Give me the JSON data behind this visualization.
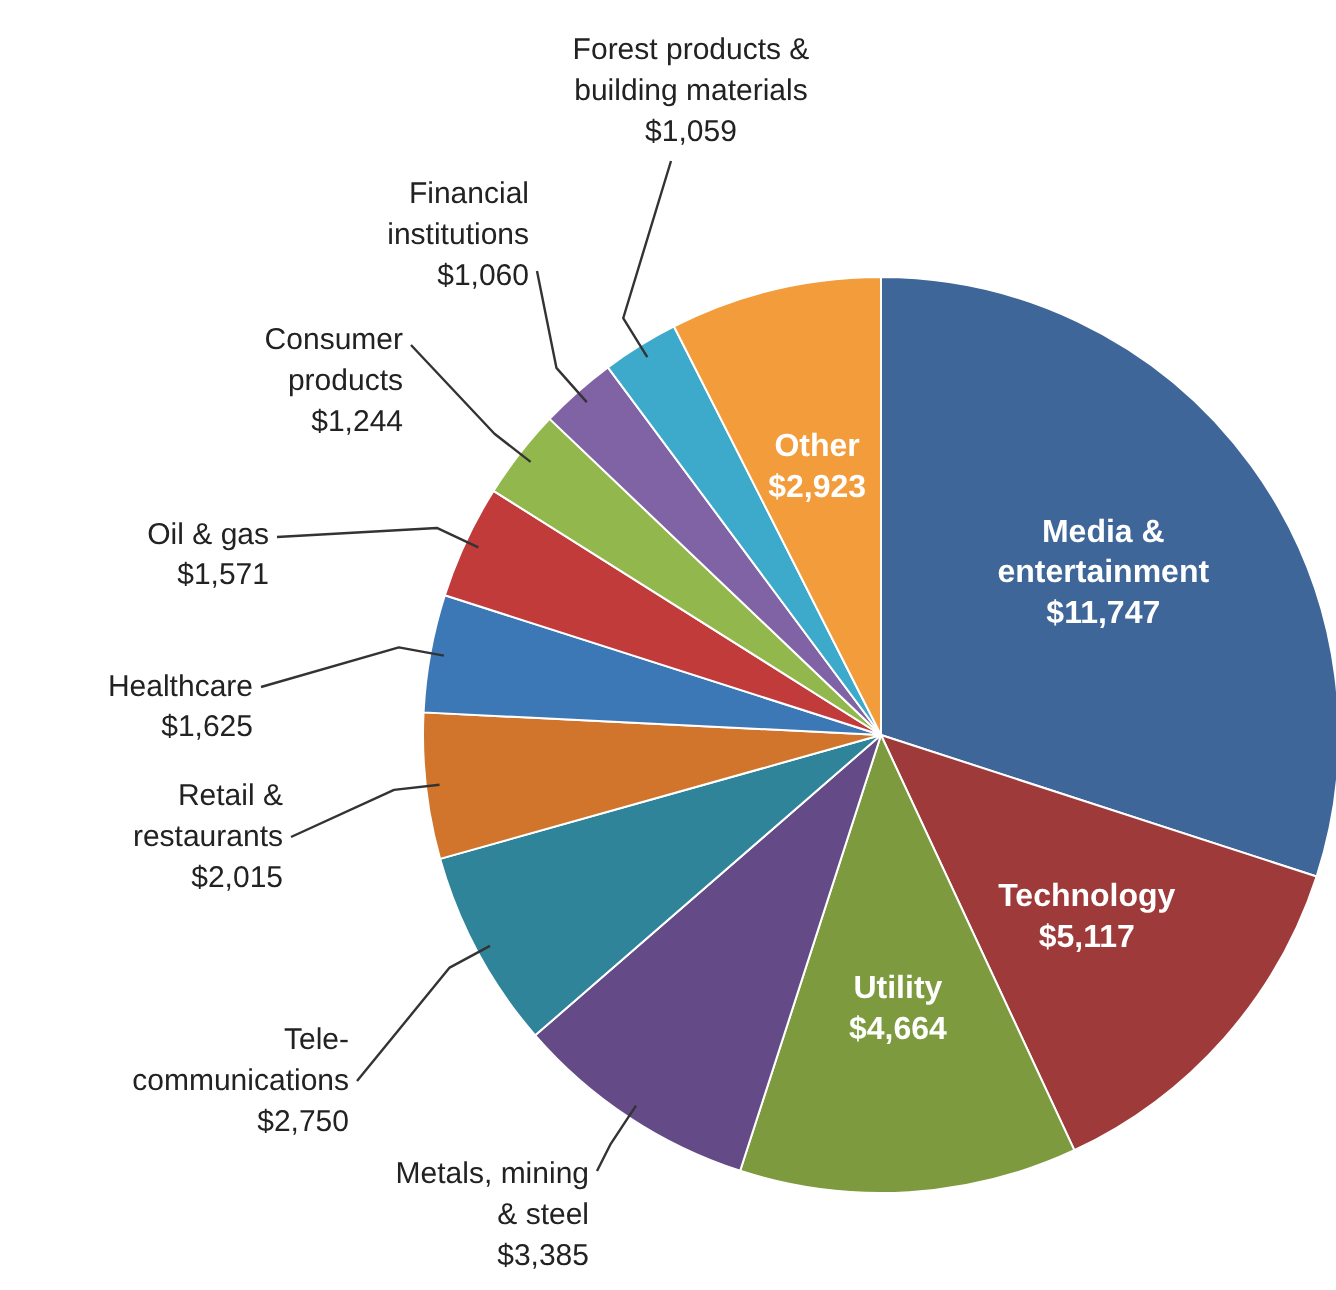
{
  "chart_data": {
    "type": "pie",
    "categories": [
      "Media &\nentertainment",
      "Technology",
      "Utility",
      "Metals, mining\n& steel",
      "Tele-\ncommunications",
      "Retail &\nrestaurants",
      "Healthcare",
      "Oil & gas",
      "Consumer\nproducts",
      "Financial\ninstitutions",
      "Forest products &\nbuilding materials",
      "Other"
    ],
    "values": [
      11747,
      5117,
      4664,
      3385,
      2750,
      2015,
      1625,
      1571,
      1244,
      1060,
      1059,
      2923
    ],
    "value_labels": [
      "$11,747",
      "$5,117",
      "$4,664",
      "$3,385",
      "$2,750",
      "$2,015",
      "$1,625",
      "$1,571",
      "$1,244",
      "$1,060",
      "$1,059",
      "$2,923"
    ],
    "colors": [
      "#3f6699",
      "#9e3b3a",
      "#7d9a3e",
      "#644a86",
      "#2f8499",
      "#d0752b",
      "#3d78b6",
      "#c23b3b",
      "#92b84d",
      "#7f63a4",
      "#3eaacb",
      "#f39c3c"
    ]
  }
}
